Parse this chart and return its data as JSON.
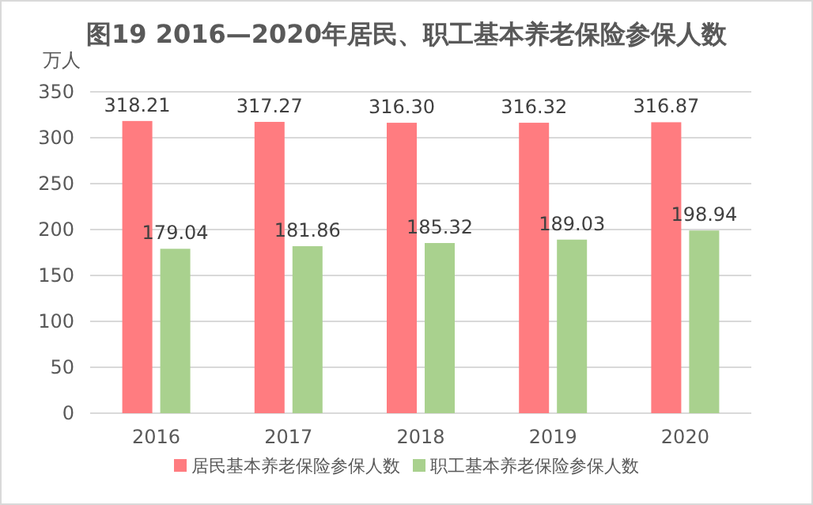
{
  "chart_data": {
    "type": "bar",
    "title": "图19 2016—2020年居民、职工基本养老保险参保人数",
    "ylabel": "万人",
    "categories": [
      "2016",
      "2017",
      "2018",
      "2019",
      "2020"
    ],
    "series": [
      {
        "name": "居民基本养老保险参保人数",
        "color": "#ff7c80",
        "values": [
          318.21,
          317.27,
          316.3,
          316.32,
          316.87
        ],
        "value_labels": [
          "318.21",
          "317.27",
          "316.30",
          "316.32",
          "316.87"
        ]
      },
      {
        "name": "职工基本养老保险参保人数",
        "color": "#a9d18e",
        "values": [
          179.04,
          181.86,
          185.32,
          189.03,
          198.94
        ],
        "value_labels": [
          "179.04",
          "181.86",
          "185.32",
          "189.03",
          "198.94"
        ]
      }
    ],
    "ylim": [
      0,
      350
    ],
    "yticks": [
      0,
      50,
      100,
      150,
      200,
      250,
      300,
      350
    ],
    "grid": "y",
    "legend": "bottom"
  }
}
